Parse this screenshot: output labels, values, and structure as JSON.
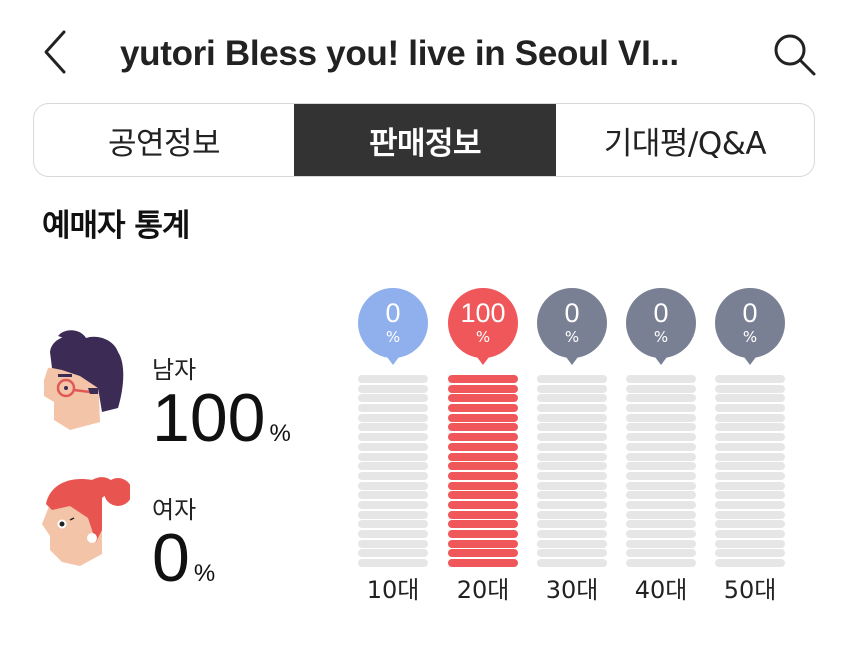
{
  "header": {
    "title": "yutori Bless you! live in Seoul VI...",
    "back_icon": "chevron-left-icon",
    "search_icon": "search-icon"
  },
  "tabs": [
    {
      "label": "공연정보",
      "active": false
    },
    {
      "label": "판매정보",
      "active": true
    },
    {
      "label": "기대평/Q&A",
      "active": false
    }
  ],
  "section": {
    "title": "예매자 통계"
  },
  "gender": {
    "male": {
      "label": "남자",
      "value": "100",
      "unit": "%"
    },
    "female": {
      "label": "여자",
      "value": "0",
      "unit": "%"
    }
  },
  "age": {
    "stripe_count": 20,
    "groups": [
      {
        "label": "10대",
        "value": "0",
        "unit": "%",
        "color": "#8fb0ec"
      },
      {
        "label": "20대",
        "value": "100",
        "unit": "%",
        "color": "#f0575a"
      },
      {
        "label": "30대",
        "value": "0",
        "unit": "%",
        "color": "#7a8093"
      },
      {
        "label": "40대",
        "value": "0",
        "unit": "%",
        "color": "#7a8093"
      },
      {
        "label": "50대",
        "value": "0",
        "unit": "%",
        "color": "#7a8093"
      }
    ]
  },
  "chart_data": {
    "type": "bar",
    "title": "예매자 통계",
    "categories": [
      "10대",
      "20대",
      "30대",
      "40대",
      "50대"
    ],
    "values": [
      0,
      100,
      0,
      0,
      0
    ],
    "ylabel": "%",
    "ylim": [
      0,
      100
    ],
    "gender": {
      "categories": [
        "남자",
        "여자"
      ],
      "values": [
        100,
        0
      ]
    }
  },
  "colors": {
    "active_tab_bg": "#333333",
    "highlight_red": "#f0575a",
    "teen_blue": "#8fb0ec",
    "neutral_gray": "#7a8093",
    "stripe_empty": "#e6e6e6"
  }
}
